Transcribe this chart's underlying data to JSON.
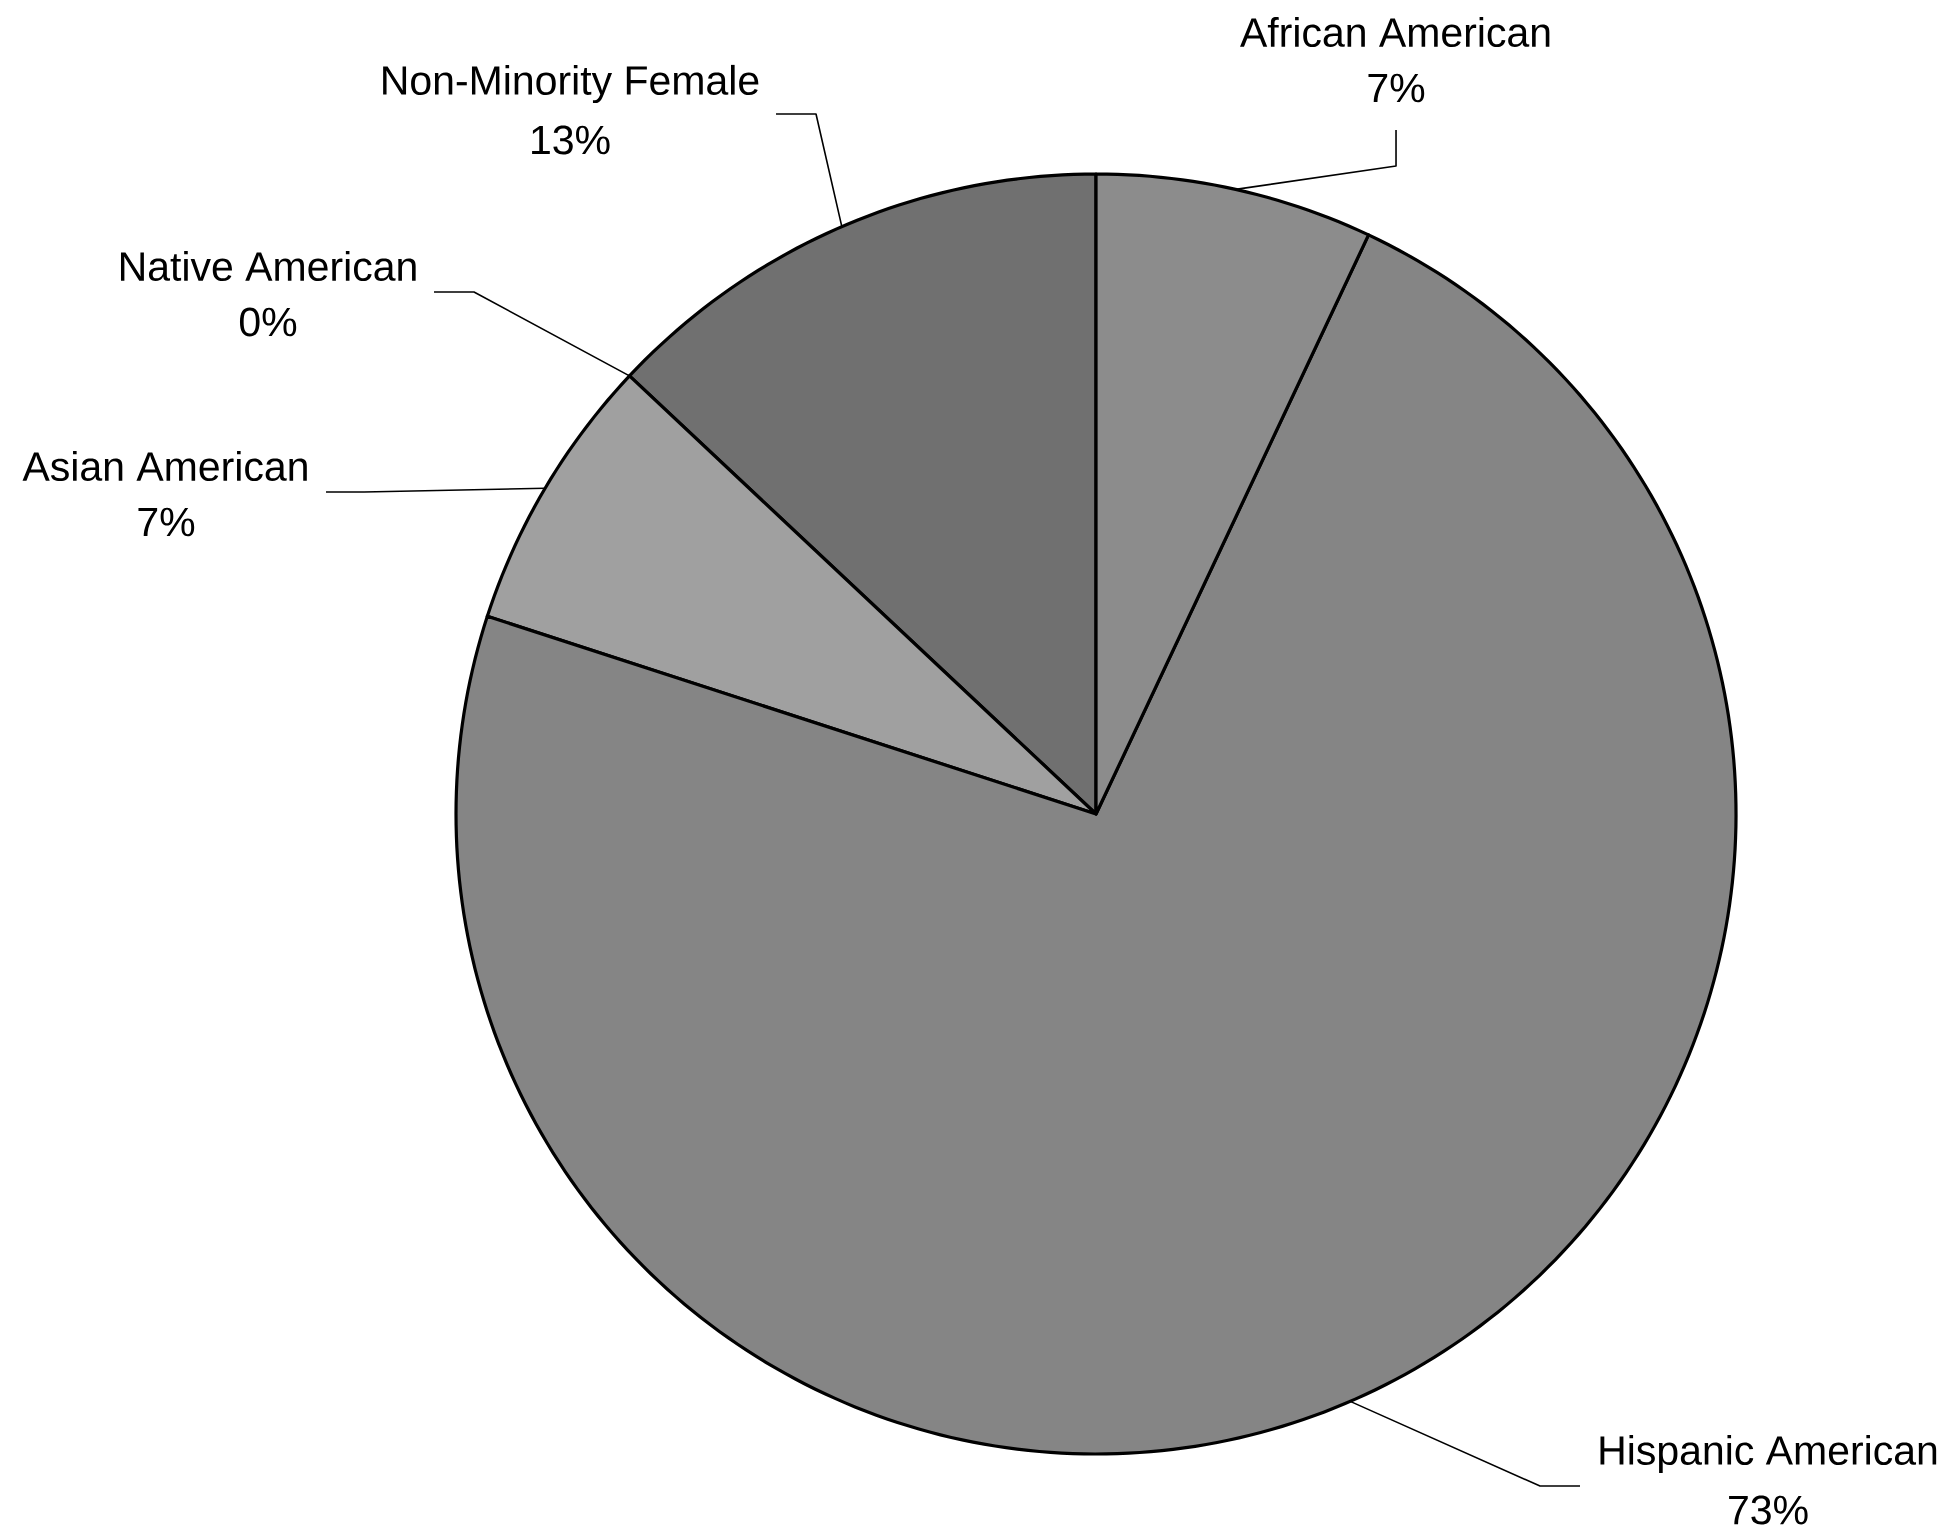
{
  "chart_data": {
    "type": "pie",
    "categories": [
      "African American",
      "Hispanic American",
      "Asian American",
      "Native American",
      "Non-Minority Female"
    ],
    "values": [
      7,
      73,
      7,
      0,
      13
    ],
    "colors": [
      "#8c8c8c",
      "#858585",
      "#a0a0a0",
      null,
      "#707070"
    ],
    "value_labels": [
      "7%",
      "73%",
      "7%",
      "0%",
      "13%"
    ]
  }
}
